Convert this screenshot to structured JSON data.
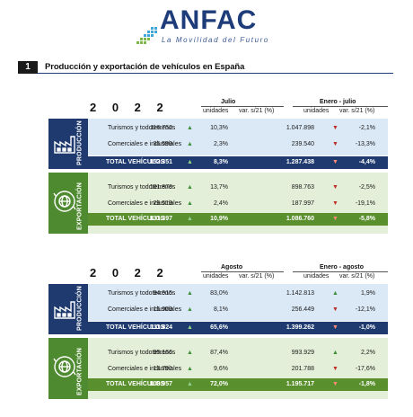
{
  "logo": {
    "word": "ANFAC",
    "tagline": "La Movilidad del Futuro"
  },
  "section": {
    "number": "1",
    "title": "Producción y exportación de vehículos en España"
  },
  "tables": [
    {
      "year": "2 0 2 2",
      "period_a": "Julio",
      "period_b": "Enero - julio",
      "col_units": "unidades",
      "col_var": "var. s/21 (%)",
      "production_label": "PRODUCCIÓN",
      "export_label": "EXPORTACIÓN",
      "production": [
        {
          "label": "Turismos y todoterrenos",
          "a_units": "116.752",
          "a_var": "10,3%",
          "a_dir": "up",
          "b_units": "1.047.898",
          "b_var": "-2,1%",
          "b_dir": "down"
        },
        {
          "label": "Comerciales e industriales",
          "a_units": "35.599",
          "a_var": "2,3%",
          "a_dir": "up",
          "b_units": "239.540",
          "b_var": "-13,3%",
          "b_dir": "down"
        }
      ],
      "production_total": {
        "label": "TOTAL VEHÍCULOS",
        "a_units": "152.351",
        "a_var": "8,3%",
        "a_dir": "up",
        "b_units": "1.287.438",
        "b_var": "-4,4%",
        "b_dir": "down"
      },
      "export": [
        {
          "label": "Turismos y todoterrenos",
          "a_units": "101.878",
          "a_var": "13,7%",
          "a_dir": "up",
          "b_units": "898.763",
          "b_var": "-2,5%",
          "b_dir": "down"
        },
        {
          "label": "Comerciales e industriales",
          "a_units": "29.519",
          "a_var": "2,4%",
          "a_dir": "up",
          "b_units": "187.997",
          "b_var": "-19,1%",
          "b_dir": "down"
        }
      ],
      "export_total": {
        "label": "TOTAL VEHÍCULOS",
        "a_units": "131.397",
        "a_var": "10,9%",
        "a_dir": "up",
        "b_units": "1.086.760",
        "b_var": "-5,8%",
        "b_dir": "down"
      }
    },
    {
      "year": "2 0 2 2",
      "period_a": "Agosto",
      "period_b": "Enero - agosto",
      "col_units": "unidades",
      "col_var": "var. s/21 (%)",
      "production_label": "PRODUCCIÓN",
      "export_label": "EXPORTACIÓN",
      "production": [
        {
          "label": "Turismos y todoterrenos",
          "a_units": "94.915",
          "a_var": "83,0%",
          "a_dir": "up",
          "b_units": "1.142.813",
          "b_var": "1,9%",
          "b_dir": "up"
        },
        {
          "label": "Comerciales e industriales",
          "a_units": "16.909",
          "a_var": "8,1%",
          "a_dir": "up",
          "b_units": "256.449",
          "b_var": "-12,1%",
          "b_dir": "down"
        }
      ],
      "production_total": {
        "label": "TOTAL VEHÍCULOS",
        "a_units": "111.824",
        "a_var": "65,6%",
        "a_dir": "up",
        "b_units": "1.399.262",
        "b_var": "-1,0%",
        "b_dir": "down"
      },
      "export": [
        {
          "label": "Turismos y todoterrenos",
          "a_units": "95.166",
          "a_var": "87,4%",
          "a_dir": "up",
          "b_units": "993.929",
          "b_var": "2,2%",
          "b_dir": "up"
        },
        {
          "label": "Comerciales e industriales",
          "a_units": "13.791",
          "a_var": "9,6%",
          "a_dir": "up",
          "b_units": "201.788",
          "b_var": "-17,6%",
          "b_dir": "down"
        }
      ],
      "export_total": {
        "label": "TOTAL VEHÍCULOS",
        "a_units": "108.957",
        "a_var": "72,0%",
        "a_dir": "up",
        "b_units": "1.195.717",
        "b_var": "-1,8%",
        "b_dir": "down"
      }
    }
  ],
  "colors": {
    "navy": "#1e3a6e",
    "green": "#5a8f2e",
    "prod_bg": "#dbe9f6",
    "exp_bg": "#e3efd8",
    "up": "#3e8e3a",
    "down": "#c0302a"
  }
}
